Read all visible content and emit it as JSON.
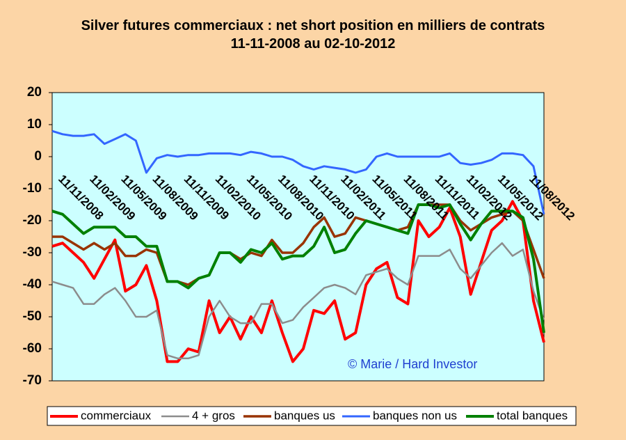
{
  "chart_data": {
    "type": "line",
    "title": "Silver futures commerciaux : net short position en milliers de contrats",
    "subtitle": "11-11-2008 au 02-10-2012",
    "annotation": "© Marie / Hard Investor",
    "categories": [
      "11/11/2008",
      null,
      null,
      "11/02/2009",
      null,
      null,
      "11/05/2009",
      null,
      null,
      "11/08/2009",
      null,
      null,
      "11/11/2009",
      null,
      null,
      "11/02/2010",
      null,
      null,
      "11/05/2010",
      null,
      null,
      "11/08/2010",
      null,
      null,
      "11/11/2010",
      null,
      null,
      "11/02/2011",
      null,
      null,
      "11/05/2011",
      null,
      null,
      "11/08/2011",
      null,
      null,
      "11/11/2011",
      null,
      null,
      "11/02/2012",
      null,
      null,
      "11/05/2012",
      null,
      null,
      "11/08/2012",
      null,
      null
    ],
    "ylim": [
      -70,
      20
    ],
    "yticks": [
      -70,
      -60,
      -50,
      -40,
      -30,
      -20,
      -10,
      0,
      10,
      20
    ],
    "grid": false,
    "legend": "bottom",
    "series": [
      {
        "name": "commerciaux",
        "color": "#ff0000",
        "width": 4,
        "values": [
          -28,
          -27,
          -30,
          -33,
          -38,
          -32,
          -26,
          -42,
          -40,
          -34,
          -45,
          -64,
          -64,
          -60,
          -61,
          -45,
          -55,
          -50,
          -57,
          -50,
          -55,
          -45,
          -55,
          -64,
          -60,
          -48,
          -49,
          -45,
          -57,
          -55,
          -40,
          -35,
          -33,
          -44,
          -46,
          -20,
          -25,
          -22,
          -16,
          -25,
          -43,
          -33,
          -23,
          -20,
          -14,
          -20,
          -45,
          -58
        ]
      },
      {
        "name": "4 + gros",
        "color": "#8c8c8c",
        "width": 2.5,
        "values": [
          -39,
          -40,
          -41,
          -46,
          -46,
          -43,
          -41,
          -45,
          -50,
          -50,
          -48,
          -62,
          -63,
          -63,
          -62,
          -50,
          -45,
          -50,
          -52,
          -52,
          -46,
          -46,
          -52,
          -51,
          -47,
          -44,
          -41,
          -40,
          -41,
          -43,
          -37,
          -36,
          -35,
          -38,
          -40,
          -31,
          -31,
          -31,
          -29,
          -35,
          -38,
          -34,
          -30,
          -27,
          -31,
          -29,
          -42,
          -51
        ]
      },
      {
        "name": "banques us",
        "color": "#993300",
        "width": 3.5,
        "values": [
          -25,
          -25,
          -27,
          -29,
          -27,
          -29,
          -27,
          -31,
          -31,
          -29,
          -30,
          -39,
          -39,
          -40,
          -38,
          -37,
          -30,
          -30,
          -32,
          -30,
          -31,
          -26,
          -30,
          -30,
          -27,
          -22,
          -19,
          -25,
          -24,
          -19,
          -20,
          -21,
          -22,
          -23,
          -22,
          -15,
          -15,
          -15,
          -15,
          -20,
          -23,
          -21,
          -19,
          -18,
          -17,
          -20,
          -29,
          -38
        ]
      },
      {
        "name": "banques non us",
        "color": "#3366ff",
        "width": 3,
        "values": [
          8,
          7,
          6.5,
          6.5,
          7,
          4,
          5.5,
          7,
          5,
          -5,
          -0.5,
          0.5,
          0,
          0.5,
          0.5,
          1,
          1,
          1,
          0.5,
          1.5,
          1,
          0,
          0,
          -1,
          -3,
          -4,
          -3,
          -3.5,
          -4,
          -5,
          -4,
          0,
          1,
          0,
          0,
          0,
          0,
          0,
          1,
          -2,
          -2.5,
          -2,
          -1,
          1,
          1,
          0.5,
          -3,
          -18
        ]
      },
      {
        "name": "total banques",
        "color": "#008000",
        "width": 4,
        "values": [
          -17,
          -18,
          -21,
          -24,
          -22,
          -22,
          -22,
          -25,
          -25,
          -28,
          -28,
          -39,
          -39,
          -41,
          -38,
          -37,
          -30,
          -30,
          -33,
          -29,
          -30,
          -27,
          -32,
          -31,
          -31,
          -28,
          -22,
          -30,
          -29,
          -24,
          -20,
          -21,
          -22,
          -23,
          -24,
          -15,
          -15,
          -16,
          -15,
          -21,
          -26,
          -21,
          -17,
          -17,
          -17,
          -19,
          -32,
          -55
        ]
      }
    ]
  }
}
